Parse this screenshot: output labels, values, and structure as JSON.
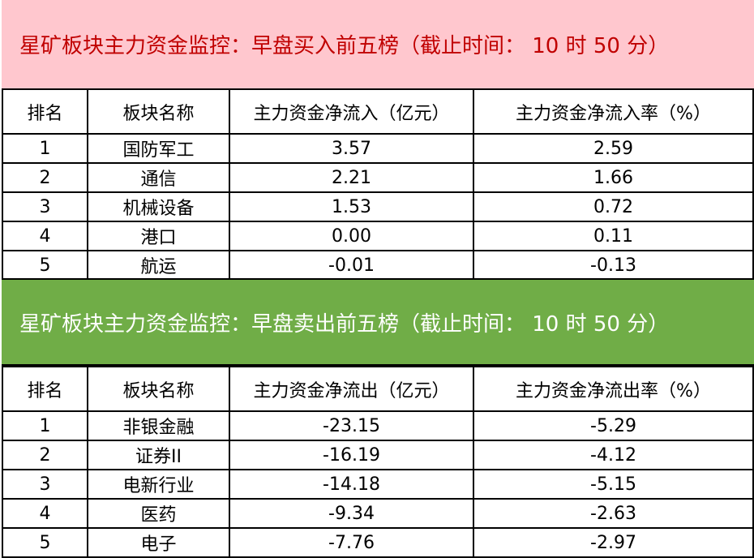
{
  "colors": {
    "buy_band": "#FFC7CE",
    "buy_title": "#C00000",
    "sell_band": "#70AD47",
    "sell_title": "#FFFFFF"
  },
  "buy": {
    "title": "星矿板块主力资金监控：早盘买入前五榜（截止时间： 10 时 50 分）",
    "headers": [
      "排名",
      "板块名称",
      "主力资金净流入（亿元）",
      "主力资金净流入率（%）"
    ],
    "rows": [
      [
        "1",
        "国防军工",
        "3.57",
        "2.59"
      ],
      [
        "2",
        "通信",
        "2.21",
        "1.66"
      ],
      [
        "3",
        "机械设备",
        "1.53",
        "0.72"
      ],
      [
        "4",
        "港口",
        "0.00",
        "0.11"
      ],
      [
        "5",
        "航运",
        "-0.01",
        "-0.13"
      ]
    ]
  },
  "sell": {
    "title": "星矿板块主力资金监控：早盘卖出前五榜（截止时间： 10 时 50 分）",
    "headers": [
      "排名",
      "板块名称",
      "主力资金净流出（亿元）",
      "主力资金净流出率（%）"
    ],
    "rows": [
      [
        "1",
        "非银金融",
        "-23.15",
        "-5.29"
      ],
      [
        "2",
        "证券II",
        "-16.19",
        "-4.12"
      ],
      [
        "3",
        "电新行业",
        "-14.18",
        "-5.15"
      ],
      [
        "4",
        "医药",
        "-9.34",
        "-2.63"
      ],
      [
        "5",
        "电子",
        "-7.76",
        "-2.97"
      ]
    ]
  }
}
